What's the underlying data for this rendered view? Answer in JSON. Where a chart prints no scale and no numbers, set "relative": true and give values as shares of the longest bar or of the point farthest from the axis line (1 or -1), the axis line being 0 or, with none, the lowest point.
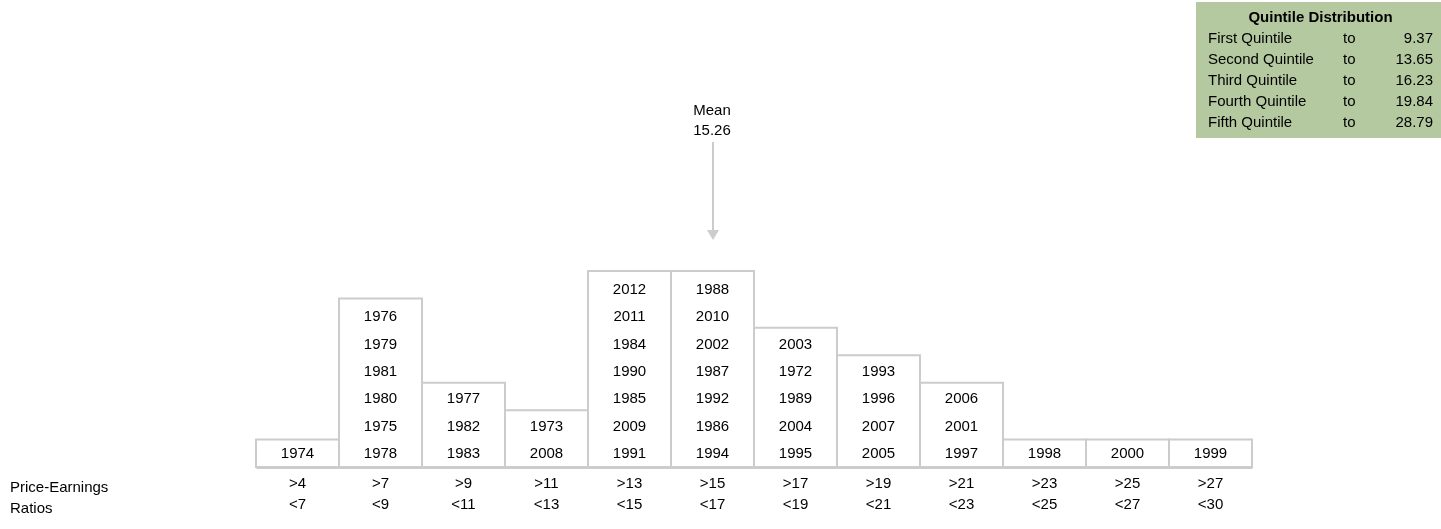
{
  "chart_data": {
    "type": "bar",
    "relative": true,
    "categories": [
      ">4 <7",
      ">7 <9",
      ">9 <11",
      ">11 <13",
      ">13 <15",
      ">15 <17",
      ">17 <19",
      ">19 <21",
      ">21 <23",
      ">23 <25",
      ">25 <27",
      ">27 <30"
    ],
    "values": [
      0.14,
      0.86,
      0.43,
      0.29,
      1,
      1,
      0.71,
      0.57,
      0.43,
      0.14,
      0.14,
      0.14
    ],
    "color": "#ffffff",
    "annotations": [
      "Mean 15.26",
      "Price-Earnings Ratios",
      "Quintile Distribution",
      "First Quintile to 9.37",
      "Second Quintile to 13.65",
      "Third Quintile to 16.23",
      "Fourth Quintile to 19.84",
      "Fifth Quintile to 28.79",
      "1974",
      "1978",
      "1975",
      "1980",
      "1981",
      "1979",
      "1976",
      "1983",
      "1982",
      "1977",
      "2008",
      "1973",
      "1991",
      "2009",
      "1985",
      "1990",
      "1984",
      "2011",
      "2012",
      "1994",
      "1986",
      "1992",
      "1987",
      "2002",
      "2010",
      "1988",
      "1995",
      "2004",
      "1989",
      "1972",
      "2003",
      "2005",
      "2007",
      "1996",
      "1993",
      "1997",
      "2001",
      "2006",
      "1998",
      "2000",
      "1999"
    ]
  }
}
